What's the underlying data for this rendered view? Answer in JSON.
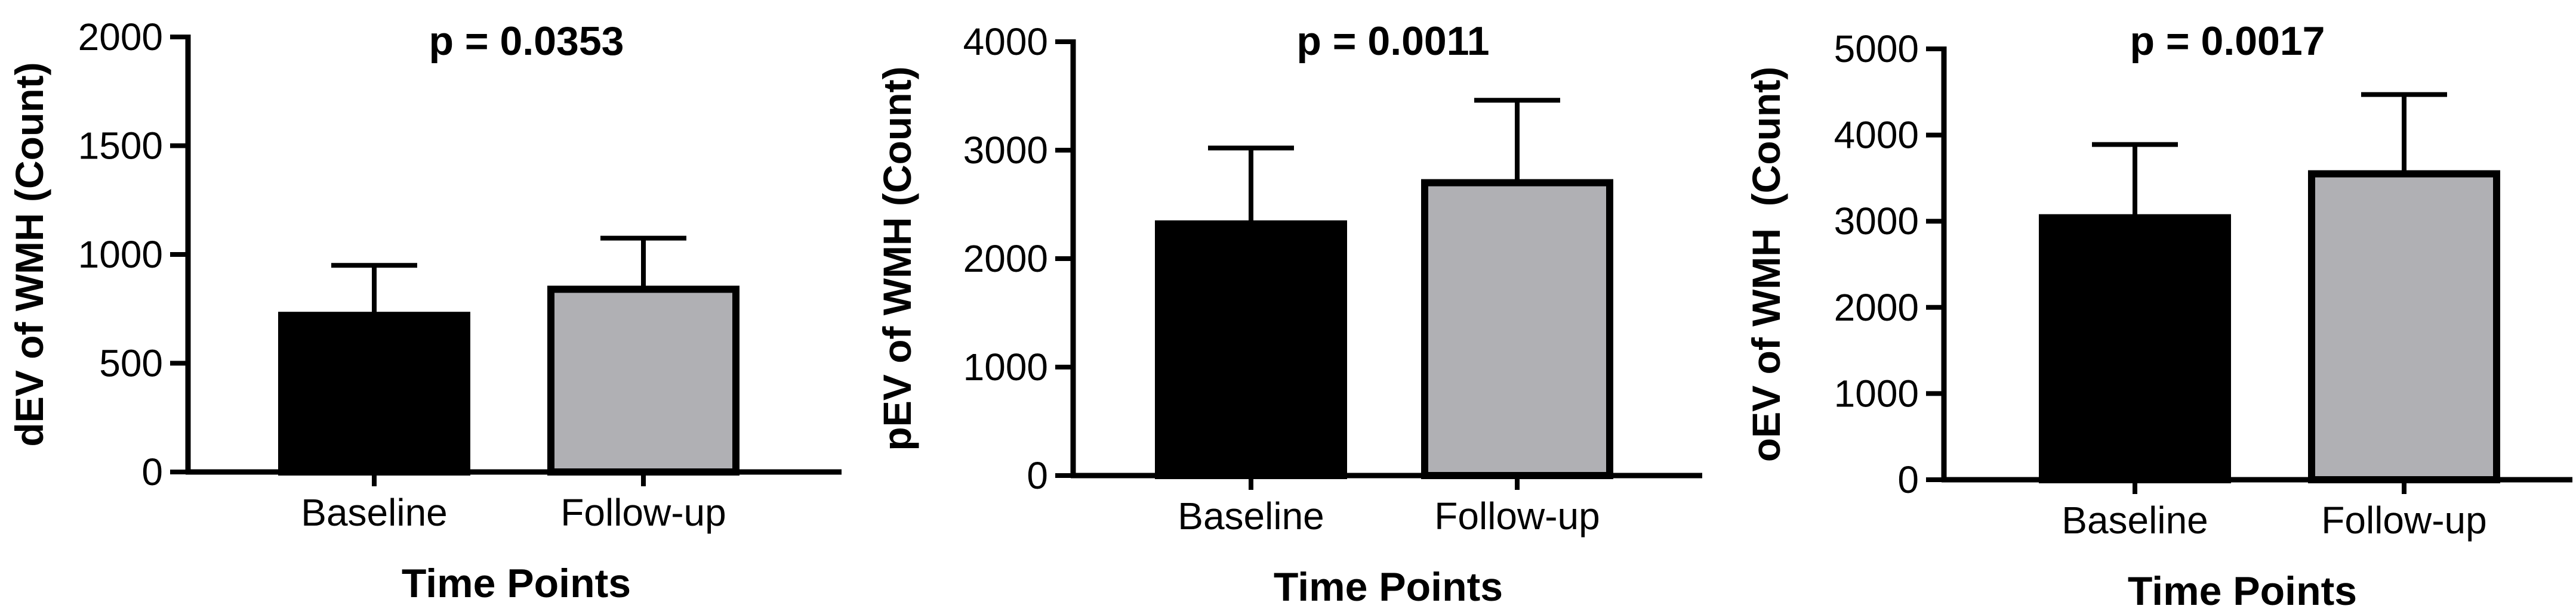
{
  "chart_data": [
    {
      "type": "bar",
      "title": "p = 0.0353",
      "xlabel": "Time Points",
      "ylabel": "dEV of WMH (Count)",
      "categories": [
        "Baseline",
        "Follow-up"
      ],
      "values": [
        720,
        840
      ],
      "error_upper": [
        950,
        1075
      ],
      "bar_colors": [
        "#000000",
        "#b0b0b4"
      ],
      "ylim": [
        0,
        2000
      ],
      "yticks": [
        "0",
        "500",
        "1000",
        "1500",
        "2000"
      ],
      "grid": false
    },
    {
      "type": "bar",
      "title": "p = 0.0011",
      "xlabel": "Time Points",
      "ylabel": "pEV of WMH (Count)",
      "categories": [
        "Baseline",
        "Follow-up"
      ],
      "values": [
        2320,
        2700
      ],
      "error_upper": [
        3020,
        3460
      ],
      "bar_colors": [
        "#000000",
        "#b0b0b4"
      ],
      "ylim": [
        0,
        4000
      ],
      "yticks": [
        "0",
        "1000",
        "2000",
        "3000",
        "4000"
      ],
      "grid": false
    },
    {
      "type": "bar",
      "title": "p = 0.0017",
      "xlabel": "Time Points",
      "ylabel": "oEV of WMH  (Count)",
      "categories": [
        "Baseline",
        "Follow-up"
      ],
      "values": [
        3040,
        3550
      ],
      "error_upper": [
        3890,
        4470
      ],
      "bar_colors": [
        "#000000",
        "#b0b0b4"
      ],
      "ylim": [
        0,
        5000
      ],
      "yticks": [
        "0",
        "1000",
        "2000",
        "3000",
        "4000",
        "5000"
      ],
      "grid": false
    }
  ]
}
